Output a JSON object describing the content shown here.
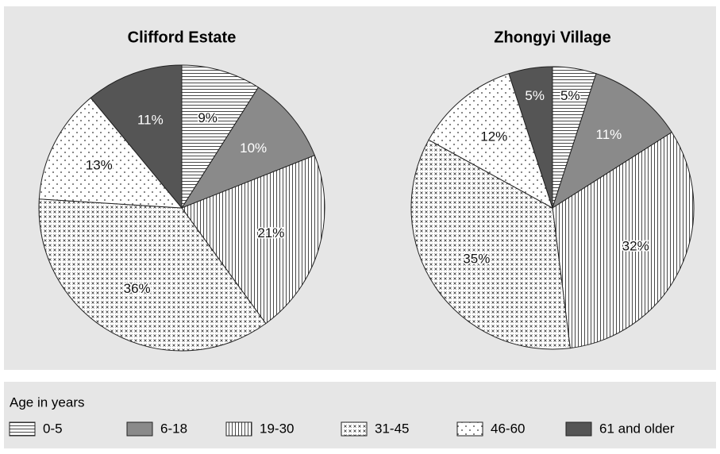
{
  "chart_data": [
    {
      "type": "pie",
      "title": "Clifford Estate",
      "categories": [
        "0-5",
        "6-18",
        "19-30",
        "31-45",
        "46-60",
        "61 and older"
      ],
      "values": [
        9,
        10,
        21,
        36,
        13,
        11
      ],
      "value_labels": [
        "9%",
        "10%",
        "21%",
        "36%",
        "13%",
        "11%"
      ],
      "fills": [
        "hlines",
        "#8a8a8a",
        "vlines",
        "cross",
        "dots",
        "#555555"
      ],
      "legend_title": "Age in years"
    },
    {
      "type": "pie",
      "title": "Zhongyi Village",
      "categories": [
        "0-5",
        "6-18",
        "19-30",
        "31-45",
        "46-60",
        "61 and older"
      ],
      "values": [
        5,
        11,
        32,
        35,
        12,
        5
      ],
      "value_labels": [
        "5%",
        "11%",
        "32%",
        "35%",
        "12%",
        "5%"
      ],
      "fills": [
        "hlines",
        "#8a8a8a",
        "vlines",
        "cross",
        "dots",
        "#555555"
      ]
    }
  ]
}
